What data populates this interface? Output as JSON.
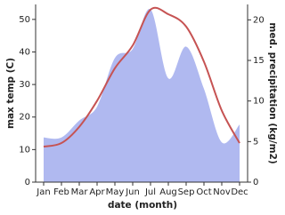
{
  "chart_data": {
    "type": "line",
    "categories": [
      "Jan",
      "Feb",
      "Mar",
      "Apr",
      "May",
      "Jun",
      "Jul",
      "Aug",
      "Sep",
      "Oct",
      "Nov",
      "Dec"
    ],
    "x_label": "date (month)",
    "y_label": "max temp (C)",
    "y2_label": "med. precipitation (kg/m2)",
    "ylim": [
      0,
      54.6
    ],
    "yticks": [
      0,
      10,
      20,
      30,
      40,
      50
    ],
    "y2lim": [
      0,
      21.9
    ],
    "y2ticks": [
      0,
      5,
      10,
      15,
      20
    ],
    "series": [
      {
        "name": "precipitation",
        "type": "area",
        "axis": "y2",
        "color": "#b0b9f0",
        "values": [
          5.5,
          5.5,
          7.6,
          9.3,
          15.3,
          16.4,
          21.3,
          12.8,
          16.7,
          11.5,
          4.9,
          7.1
        ]
      },
      {
        "name": "temperature",
        "type": "line",
        "axis": "y",
        "color": "#c65353",
        "values": [
          10.9,
          12,
          17,
          25,
          35,
          42,
          53,
          51.6,
          47.8,
          37,
          22,
          12
        ]
      }
    ]
  }
}
